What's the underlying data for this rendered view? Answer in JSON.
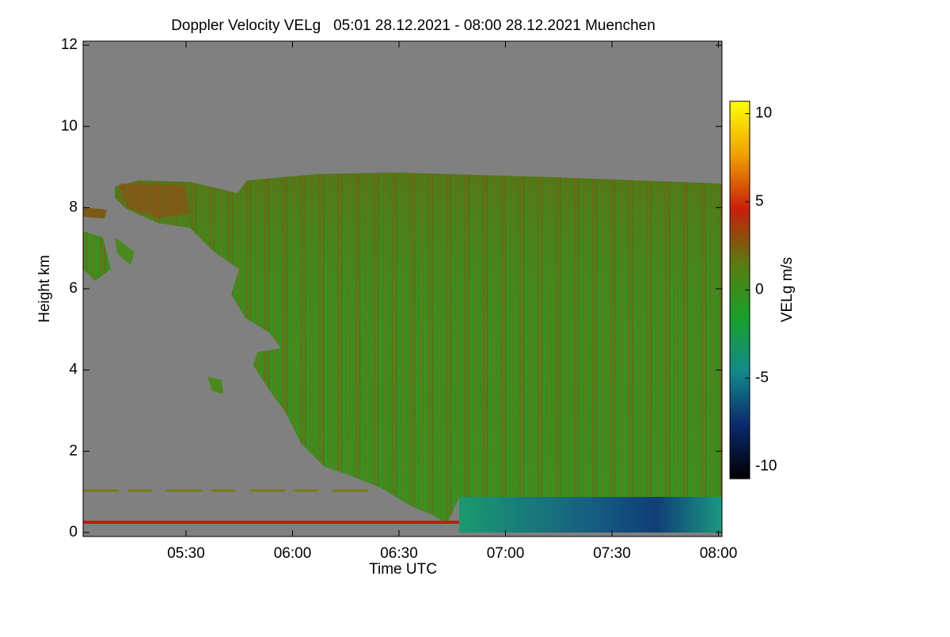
{
  "chart_data": {
    "type": "heatmap",
    "title": "Doppler Velocity VELg   05:01 28.12.2021 - 08:00 28.12.2021 Muenchen",
    "xlabel": "Time UTC",
    "ylabel": "Height km",
    "xlim": [
      5.0167,
      8.0167
    ],
    "xticks": [
      {
        "value": 5.5,
        "label": "05:30"
      },
      {
        "value": 6,
        "label": "06:00"
      },
      {
        "value": 6.5,
        "label": "06:30"
      },
      {
        "value": 7,
        "label": "07:00"
      },
      {
        "value": 7.5,
        "label": "07:30"
      },
      {
        "value": 8,
        "label": "08:00"
      }
    ],
    "ylim": [
      -0.1,
      12.1
    ],
    "yticks": [
      0,
      2,
      4,
      6,
      8,
      10,
      12
    ],
    "background": "#808080",
    "colorbar": {
      "label": "VELg m/s",
      "lim": [
        -10.7,
        10.7
      ],
      "ticks": [
        -10,
        -5,
        0,
        5,
        10
      ],
      "colors": [
        "#000000",
        "#0a2a6e",
        "#138a8a",
        "#18a028",
        "#5a7a10",
        "#c81e0a",
        "#f0a000",
        "#ffff00"
      ]
    }
  }
}
